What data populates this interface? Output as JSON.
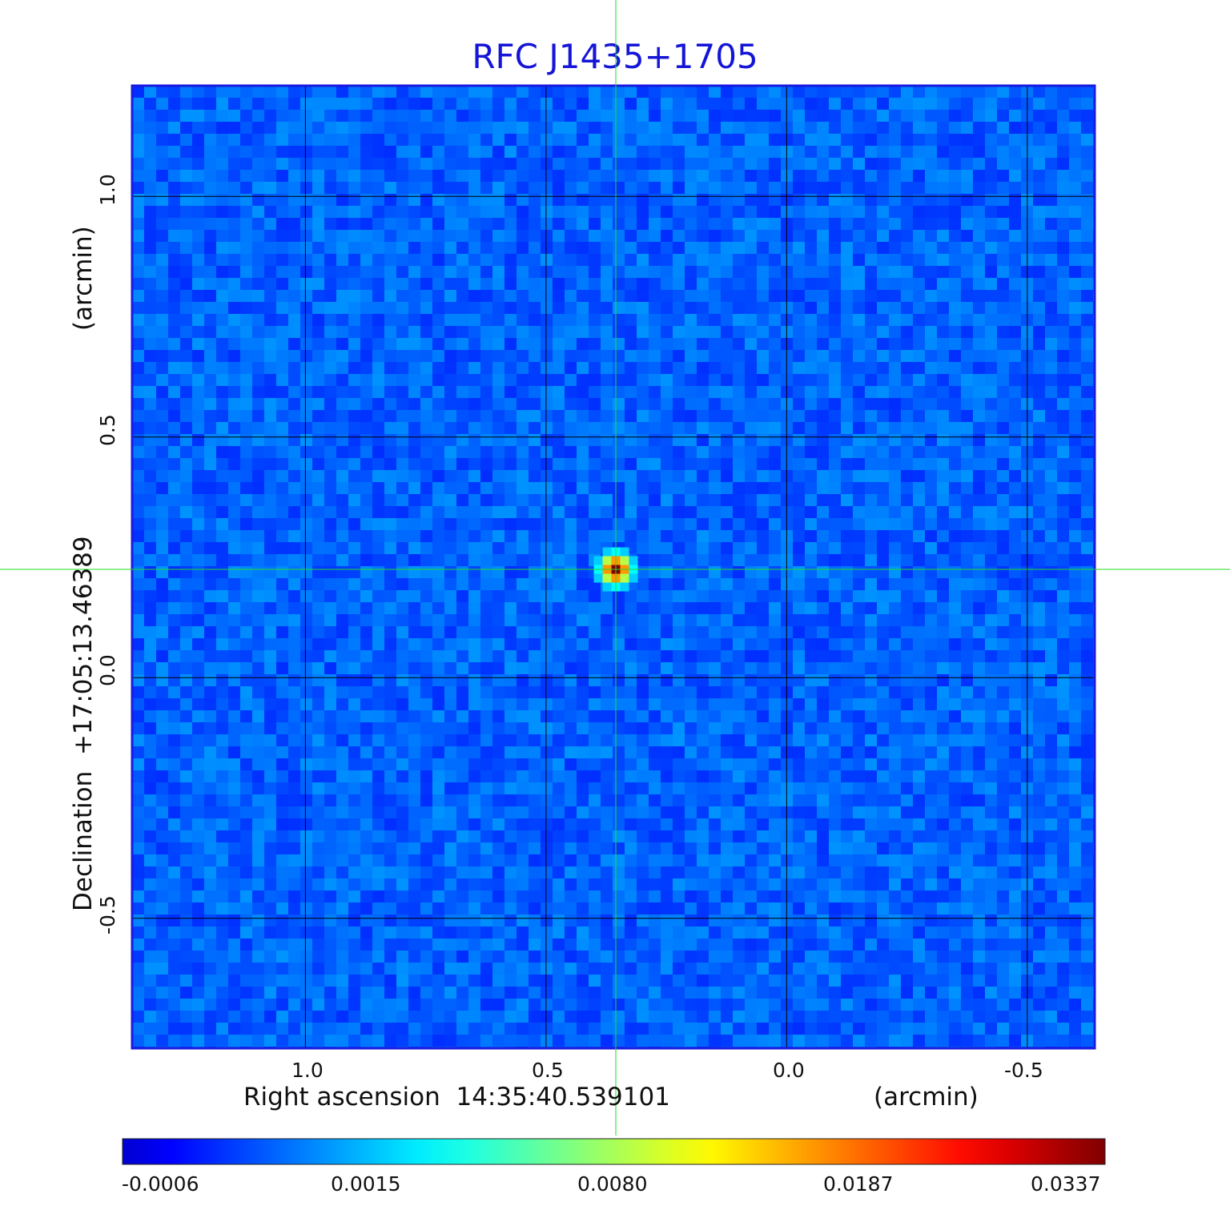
{
  "chart_data": {
    "type": "heatmap",
    "title": "RFC J1435+1705",
    "xlabel": "Right ascension  14:35:40.539101",
    "xunit": "(arcmin)",
    "ylabel": "Declination  +17:05:13.46389",
    "yunit": "(arcmin)",
    "x_ticks": [
      "1.0",
      "0.5",
      "0.0",
      "-0.5"
    ],
    "y_ticks": [
      "1.0",
      "0.5",
      "0.0",
      "-0.5"
    ],
    "xlim": [
      1.36,
      -0.64
    ],
    "ylim": [
      -0.77,
      1.23
    ],
    "grid": true,
    "source": {
      "x": 0.355,
      "y": 0.225,
      "peak": 0.0337
    },
    "crosshair": {
      "x": 0.355,
      "y": 0.225,
      "color": "#22dd22"
    },
    "colorbar": {
      "ticks": [
        "-0.0006",
        "0.0015",
        "0.0080",
        "0.0187",
        "0.0337"
      ],
      "colormap": "jet"
    },
    "colors": {
      "title": "#1515d8",
      "frame": "#1a1ae0",
      "background_map": "#2456f0",
      "grid": "#000000"
    }
  }
}
